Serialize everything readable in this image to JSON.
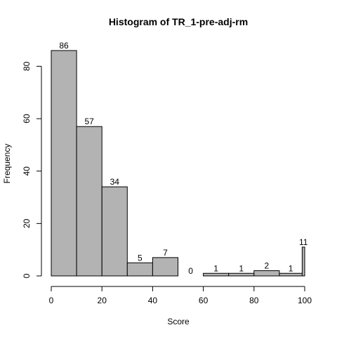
{
  "chart_data": {
    "type": "bar",
    "title": "Histogram of TR_1-pre-adj-rm",
    "xlabel": "Score",
    "ylabel": "Frequency",
    "bins": [
      {
        "start": 0,
        "end": 10,
        "count": 86
      },
      {
        "start": 10,
        "end": 20,
        "count": 57
      },
      {
        "start": 20,
        "end": 30,
        "count": 34
      },
      {
        "start": 30,
        "end": 40,
        "count": 5
      },
      {
        "start": 40,
        "end": 50,
        "count": 7
      },
      {
        "start": 50,
        "end": 60,
        "count": 0
      },
      {
        "start": 60,
        "end": 70,
        "count": 1
      },
      {
        "start": 70,
        "end": 80,
        "count": 1
      },
      {
        "start": 80,
        "end": 90,
        "count": 2
      },
      {
        "start": 90,
        "end": 99,
        "count": 1
      },
      {
        "start": 99,
        "end": 100,
        "count": 11
      }
    ],
    "xlim": [
      0,
      100
    ],
    "ylim": [
      0,
      86
    ],
    "xticks": [
      0,
      20,
      40,
      60,
      80,
      100
    ],
    "yticks": [
      0,
      20,
      40,
      60,
      80
    ],
    "bar_color": "#b3b3b3",
    "grid": false,
    "legend": "none"
  }
}
